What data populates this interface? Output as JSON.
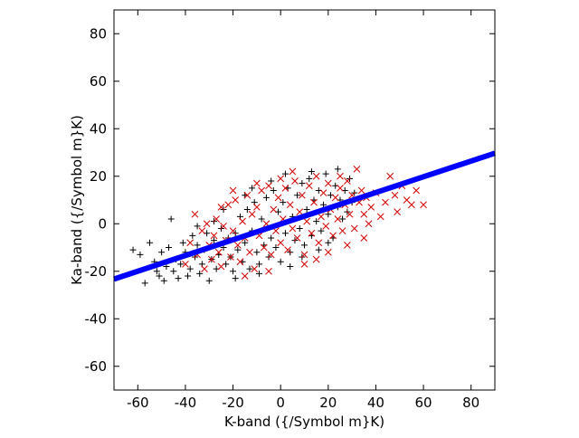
{
  "chart_data": {
    "type": "scatter",
    "xlabel": "K-band ({/Symbol m}K)",
    "ylabel": "Ka-band ({/Symbol m}K)",
    "xlim": [
      -70,
      90
    ],
    "ylim": [
      -70,
      90
    ],
    "xticks": [
      -60,
      -40,
      -20,
      0,
      20,
      40,
      60,
      80
    ],
    "yticks": [
      -60,
      -40,
      -20,
      0,
      20,
      40,
      60,
      80
    ],
    "grid": false,
    "legend": "none",
    "series": [
      {
        "marker": "plus",
        "color": "#000000",
        "points": [
          [
            -62,
            -11
          ],
          [
            -59,
            -13
          ],
          [
            -57,
            -25
          ],
          [
            -55,
            -8
          ],
          [
            -53,
            -16
          ],
          [
            -52,
            -20
          ],
          [
            -51,
            -22
          ],
          [
            -50,
            -12
          ],
          [
            -49,
            -24
          ],
          [
            -48,
            -18
          ],
          [
            -47,
            -10
          ],
          [
            -46,
            2
          ],
          [
            -45,
            -20
          ],
          [
            -44,
            -15
          ],
          [
            -43,
            -23
          ],
          [
            -42,
            -17
          ],
          [
            -41,
            -8
          ],
          [
            -40,
            -12
          ],
          [
            -39,
            -22
          ],
          [
            -38,
            -19
          ],
          [
            -37,
            -5
          ],
          [
            -36,
            -14
          ],
          [
            -35,
            -9
          ],
          [
            -34,
            -21
          ],
          [
            -33,
            -17
          ],
          [
            -32,
            -11
          ],
          [
            -31,
            -4
          ],
          [
            -30,
            -24
          ],
          [
            -29,
            -15
          ],
          [
            -28,
            -7
          ],
          [
            -27,
            -19
          ],
          [
            -26,
            -13
          ],
          [
            -25,
            -2
          ],
          [
            -24,
            -10
          ],
          [
            -23,
            -17
          ],
          [
            -22,
            -6
          ],
          [
            -21,
            -14
          ],
          [
            -20,
            -20
          ],
          [
            -19,
            -4
          ],
          [
            -18,
            -11
          ],
          [
            -17,
            3
          ],
          [
            -16,
            -16
          ],
          [
            -15,
            -8
          ],
          [
            -14,
            6
          ],
          [
            -13,
            -19
          ],
          [
            -12,
            -3
          ],
          [
            -11,
            9
          ],
          [
            -10,
            -12
          ],
          [
            -9,
            -17
          ],
          [
            -8,
            2
          ],
          [
            -7,
            -9
          ],
          [
            -6,
            11
          ],
          [
            -5,
            -14
          ],
          [
            -4,
            -6
          ],
          [
            -3,
            14
          ],
          [
            -2,
            -10
          ],
          [
            -1,
            5
          ],
          [
            0,
            -16
          ],
          [
            1,
            9
          ],
          [
            2,
            -4
          ],
          [
            3,
            15
          ],
          [
            4,
            -12
          ],
          [
            5,
            3
          ],
          [
            6,
            -7
          ],
          [
            7,
            12
          ],
          [
            8,
            -2
          ],
          [
            9,
            17
          ],
          [
            10,
            -9
          ],
          [
            11,
            6
          ],
          [
            12,
            19
          ],
          [
            13,
            -5
          ],
          [
            14,
            10
          ],
          [
            15,
            1
          ],
          [
            16,
            14
          ],
          [
            17,
            -3
          ],
          [
            18,
            8
          ],
          [
            19,
            21
          ],
          [
            20,
            4
          ],
          [
            21,
            12
          ],
          [
            22,
            -6
          ],
          [
            23,
            16
          ],
          [
            24,
            7
          ],
          [
            25,
            10
          ],
          [
            26,
            2
          ],
          [
            27,
            14
          ],
          [
            28,
            5
          ],
          [
            29,
            19
          ],
          [
            30,
            9
          ],
          [
            31,
            13
          ],
          [
            -28,
            1
          ],
          [
            -24,
            6
          ],
          [
            -19,
            -23
          ],
          [
            -15,
            12
          ],
          [
            -9,
            -21
          ],
          [
            -4,
            18
          ],
          [
            4,
            -18
          ],
          [
            9,
            -14
          ],
          [
            16,
            -11
          ],
          [
            20,
            -8
          ],
          [
            -35,
            -1
          ],
          [
            -12,
            15
          ],
          [
            2,
            21
          ],
          [
            13,
            22
          ],
          [
            24,
            23
          ]
        ]
      },
      {
        "marker": "cross",
        "color": "#d40000",
        "points": [
          [
            -40,
            -17
          ],
          [
            -38,
            -8
          ],
          [
            -36,
            4
          ],
          [
            -35,
            -13
          ],
          [
            -33,
            -3
          ],
          [
            -32,
            -19
          ],
          [
            -31,
            0
          ],
          [
            -30,
            -9
          ],
          [
            -29,
            -15
          ],
          [
            -28,
            -5
          ],
          [
            -27,
            2
          ],
          [
            -26,
            -12
          ],
          [
            -25,
            -18
          ],
          [
            -24,
            -1
          ],
          [
            -23,
            -7
          ],
          [
            -22,
            8
          ],
          [
            -21,
            -14
          ],
          [
            -20,
            -3
          ],
          [
            -19,
            10
          ],
          [
            -18,
            -9
          ],
          [
            -17,
            -16
          ],
          [
            -16,
            1
          ],
          [
            -15,
            -6
          ],
          [
            -14,
            12
          ],
          [
            -13,
            -12
          ],
          [
            -12,
            4
          ],
          [
            -11,
            -19
          ],
          [
            -10,
            7
          ],
          [
            -9,
            -5
          ],
          [
            -8,
            14
          ],
          [
            -7,
            -10
          ],
          [
            -6,
            0
          ],
          [
            -5,
            16
          ],
          [
            -4,
            -13
          ],
          [
            -3,
            6
          ],
          [
            -2,
            -3
          ],
          [
            -1,
            11
          ],
          [
            0,
            -8
          ],
          [
            1,
            2
          ],
          [
            2,
            15
          ],
          [
            3,
            -11
          ],
          [
            4,
            8
          ],
          [
            5,
            -2
          ],
          [
            6,
            18
          ],
          [
            7,
            -6
          ],
          [
            8,
            5
          ],
          [
            9,
            12
          ],
          [
            10,
            -13
          ],
          [
            11,
            1
          ],
          [
            12,
            16
          ],
          [
            13,
            -4
          ],
          [
            14,
            9
          ],
          [
            15,
            20
          ],
          [
            16,
            -8
          ],
          [
            17,
            3
          ],
          [
            18,
            13
          ],
          [
            19,
            -1
          ],
          [
            20,
            17
          ],
          [
            21,
            6
          ],
          [
            22,
            -5
          ],
          [
            23,
            11
          ],
          [
            24,
            2
          ],
          [
            25,
            15
          ],
          [
            26,
            -3
          ],
          [
            27,
            8
          ],
          [
            28,
            18
          ],
          [
            29,
            4
          ],
          [
            30,
            12
          ],
          [
            31,
            -2
          ],
          [
            32,
            23
          ],
          [
            33,
            9
          ],
          [
            34,
            14
          ],
          [
            35,
            4
          ],
          [
            36,
            11
          ],
          [
            37,
            0
          ],
          [
            38,
            7
          ],
          [
            40,
            13
          ],
          [
            42,
            3
          ],
          [
            44,
            9
          ],
          [
            46,
            20
          ],
          [
            48,
            12
          ],
          [
            49,
            5
          ],
          [
            51,
            16
          ],
          [
            53,
            10
          ],
          [
            55,
            8
          ],
          [
            57,
            14
          ],
          [
            60,
            8
          ],
          [
            -20,
            14
          ],
          [
            -10,
            17
          ],
          [
            0,
            19
          ],
          [
            10,
            -17
          ],
          [
            15,
            -15
          ],
          [
            -5,
            -20
          ],
          [
            -15,
            -22
          ],
          [
            20,
            -12
          ],
          [
            28,
            -9
          ],
          [
            35,
            -6
          ],
          [
            -25,
            7
          ],
          [
            5,
            22
          ],
          [
            25,
            20
          ]
        ]
      },
      {
        "marker": "line",
        "color": "#0000ff",
        "points": [
          [
            -70,
            -23.3
          ],
          [
            90,
            29.7
          ]
        ]
      }
    ]
  }
}
